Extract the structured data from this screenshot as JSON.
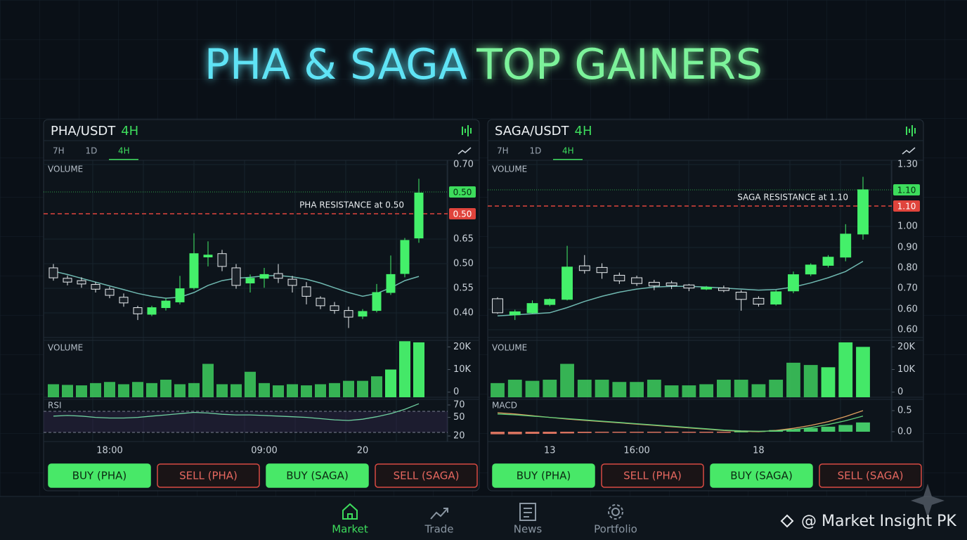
{
  "header": {
    "title_a": "PHA & SAGA",
    "title_b": "TOP GAINERS"
  },
  "chart_data": [
    {
      "type": "candlestick",
      "title": "PHA/USDT",
      "timeframe": "4H",
      "tabs": [
        "7H",
        "1D",
        "4H"
      ],
      "active_tab": 2,
      "price_panel_label": "VOLUME",
      "price_axis_labels": [
        "0.70",
        "0.65",
        "0.50",
        "0.55",
        "0.40"
      ],
      "badges": [
        {
          "label": "0.50",
          "color": "#3ddc5c"
        },
        {
          "label": "0.50",
          "color": "#e0443c"
        }
      ],
      "resistance_label": "PHA RESISTANCE at 0.50",
      "ylim": [
        0.335,
        0.709
      ],
      "categories": [
        null,
        null,
        null,
        null,
        "18:00",
        null,
        null,
        null,
        null,
        null,
        null,
        null,
        null,
        null,
        null,
        "09:00",
        null,
        null,
        null,
        null,
        null,
        null,
        "20",
        null,
        null,
        null,
        null
      ],
      "candles": {
        "open": [
          0.482,
          0.46,
          0.455,
          0.447,
          0.437,
          0.42,
          0.398,
          0.384,
          0.398,
          0.41,
          0.44,
          0.505,
          0.512,
          0.482,
          0.45,
          0.46,
          0.47,
          0.458,
          0.442,
          0.418,
          0.402,
          0.392,
          0.38,
          0.392,
          0.43,
          0.47,
          0.545
        ],
        "high": [
          0.49,
          0.466,
          0.462,
          0.452,
          0.442,
          0.428,
          0.402,
          0.402,
          0.418,
          0.465,
          0.555,
          0.538,
          0.52,
          0.49,
          0.468,
          0.482,
          0.49,
          0.465,
          0.452,
          0.422,
          0.41,
          0.4,
          0.395,
          0.448,
          0.508,
          0.545,
          0.67
        ],
        "low": [
          0.455,
          0.445,
          0.44,
          0.43,
          0.418,
          0.4,
          0.372,
          0.38,
          0.392,
          0.405,
          0.436,
          0.485,
          0.475,
          0.438,
          0.43,
          0.44,
          0.45,
          0.43,
          0.405,
          0.395,
          0.385,
          0.355,
          0.374,
          0.388,
          0.425,
          0.462,
          0.535
        ],
        "close": [
          0.461,
          0.452,
          0.448,
          0.437,
          0.424,
          0.408,
          0.385,
          0.398,
          0.412,
          0.438,
          0.512,
          0.509,
          0.485,
          0.445,
          0.46,
          0.468,
          0.46,
          0.445,
          0.422,
          0.402,
          0.392,
          0.378,
          0.39,
          0.43,
          0.468,
          0.54,
          0.64
        ]
      },
      "ma": {
        "color": "#6fb8b0",
        "values": [
          0.475,
          0.468,
          0.46,
          0.452,
          0.444,
          0.436,
          0.428,
          0.422,
          0.418,
          0.42,
          0.43,
          0.445,
          0.455,
          0.46,
          0.462,
          0.465,
          0.466,
          0.463,
          0.458,
          0.45,
          0.44,
          0.43,
          0.422,
          0.428,
          0.44,
          0.455,
          0.464
        ]
      },
      "volume": {
        "label": "VOLUME",
        "color": "#44e868",
        "ylim": [
          -2260,
          22900
        ],
        "yticks": [
          {
            "value": 20000,
            "label": "20K"
          },
          {
            "value": 10000,
            "label": "10K"
          },
          0
        ],
        "values": [
          3500,
          3200,
          3000,
          4000,
          4500,
          3500,
          4500,
          4000,
          5500,
          3500,
          4000,
          12500,
          3500,
          3500,
          9000,
          4000,
          3000,
          3500,
          3000,
          3500,
          4000,
          5000,
          5000,
          7000,
          10000,
          22500,
          22000
        ]
      },
      "indicator": {
        "type": "rsi",
        "label": "RSI",
        "color": "#6fd0a0",
        "ylim": [
          11,
          79
        ],
        "yticks": [
          70,
          50,
          20
        ],
        "values": [
          52,
          53,
          52,
          50,
          49,
          49,
          50,
          52,
          54,
          56,
          58,
          57,
          55,
          54,
          54,
          53,
          52,
          51,
          50,
          48,
          46,
          45,
          47,
          51,
          56,
          63,
          72
        ]
      }
    },
    {
      "type": "candlestick",
      "title": "SAGA/USDT",
      "timeframe": "4H",
      "tabs": [
        "7H",
        "1D",
        "4H"
      ],
      "active_tab": 2,
      "price_panel_label": "VOLUME",
      "price_axis_labels": [
        "1.30",
        "1.00",
        "0.90",
        "0.80",
        "0.70",
        "0.60",
        "0.60"
      ],
      "badges": [
        {
          "label": "1.10",
          "color": "#3ddc5c"
        },
        {
          "label": "1.10",
          "color": "#e0443c"
        }
      ],
      "resistance_label": "SAGA RESISTANCE at 1.10",
      "ylim": [
        0.46,
        1.32
      ],
      "categories": [
        null,
        null,
        null,
        "13",
        null,
        null,
        null,
        null,
        "16:00",
        null,
        null,
        null,
        null,
        null,
        null,
        "18",
        null,
        null,
        null,
        null,
        null,
        null
      ],
      "candles": {
        "open": [
          0.648,
          0.57,
          0.58,
          0.62,
          0.645,
          0.808,
          0.8,
          0.762,
          0.75,
          0.728,
          0.725,
          0.715,
          0.695,
          0.7,
          0.68,
          0.65,
          0.622,
          0.686,
          0.768,
          0.81,
          0.85,
          0.962
        ],
        "high": [
          0.655,
          0.595,
          0.64,
          0.65,
          0.905,
          0.86,
          0.82,
          0.775,
          0.76,
          0.74,
          0.735,
          0.72,
          0.71,
          0.712,
          0.69,
          0.66,
          0.69,
          0.78,
          0.82,
          0.86,
          1.01,
          1.24
        ],
        "low": [
          0.575,
          0.545,
          0.575,
          0.612,
          0.64,
          0.77,
          0.745,
          0.72,
          0.71,
          0.69,
          0.695,
          0.685,
          0.69,
          0.68,
          0.59,
          0.61,
          0.615,
          0.675,
          0.758,
          0.8,
          0.83,
          0.935
        ],
        "close": [
          0.58,
          0.585,
          0.625,
          0.645,
          0.802,
          0.785,
          0.775,
          0.735,
          0.722,
          0.71,
          0.712,
          0.7,
          0.703,
          0.688,
          0.645,
          0.622,
          0.682,
          0.765,
          0.812,
          0.85,
          0.962,
          1.177
        ]
      },
      "ma": {
        "color": "#6fb8b0",
        "values": [
          0.565,
          0.57,
          0.575,
          0.58,
          0.605,
          0.635,
          0.66,
          0.68,
          0.695,
          0.705,
          0.708,
          0.708,
          0.705,
          0.7,
          0.695,
          0.69,
          0.693,
          0.705,
          0.725,
          0.75,
          0.78,
          0.83
        ]
      },
      "volume": {
        "label": "VOLUME",
        "color": "#44e868",
        "ylim": [
          -2260,
          22900
        ],
        "yticks": [
          {
            "value": 20000,
            "label": "20K"
          },
          {
            "value": 10000,
            "label": "10K"
          },
          0
        ],
        "values": [
          4000,
          5500,
          5000,
          5500,
          12500,
          5500,
          5500,
          4500,
          4500,
          5500,
          3000,
          3000,
          3500,
          5500,
          5500,
          3500,
          5500,
          13000,
          12000,
          11000,
          22000,
          20000
        ]
      },
      "indicator": {
        "type": "macd",
        "label": "MACD",
        "ylim": [
          -0.233,
          0.767
        ],
        "yticks": [
          0.5,
          {
            "value": 0,
            "label": "0.0"
          }
        ],
        "histogram": [
          -0.06,
          -0.06,
          -0.05,
          -0.05,
          -0.04,
          -0.03,
          -0.02,
          -0.015,
          -0.01,
          -0.01,
          -0.005,
          -0.005,
          -0.005,
          -0.005,
          0.01,
          0.02,
          0.04,
          0.06,
          0.09,
          0.12,
          0.16,
          0.22
        ],
        "lines": [
          {
            "color": "#e0a060",
            "values": [
              0.45,
              0.42,
              0.38,
              0.34,
              0.3,
              0.27,
              0.24,
              0.21,
              0.18,
              0.15,
              0.12,
              0.09,
              0.06,
              0.03,
              0.01,
              0.0,
              0.03,
              0.08,
              0.15,
              0.24,
              0.36,
              0.5
            ]
          },
          {
            "color": "#5fd07a",
            "values": [
              0.42,
              0.4,
              0.37,
              0.34,
              0.31,
              0.28,
              0.25,
              0.22,
              0.19,
              0.16,
              0.13,
              0.1,
              0.07,
              0.04,
              0.02,
              0.01,
              0.02,
              0.05,
              0.1,
              0.17,
              0.26,
              0.37
            ]
          }
        ]
      }
    }
  ],
  "buttons": [
    [
      "BUY (PHA)",
      "SELL (PHA)",
      "BUY (SAGA)",
      "SELL (SAGA)"
    ],
    [
      "BUY (PHA)",
      "SELL (PHA)",
      "BUY (SAGA)",
      "SELL (SAGA)"
    ]
  ],
  "nav": [
    {
      "label": "Market",
      "active": true
    },
    {
      "label": "Trade",
      "active": false
    },
    {
      "label": "News",
      "active": false
    },
    {
      "label": "Portfolio",
      "active": false
    }
  ],
  "watermark": "@ Market Insight PK"
}
